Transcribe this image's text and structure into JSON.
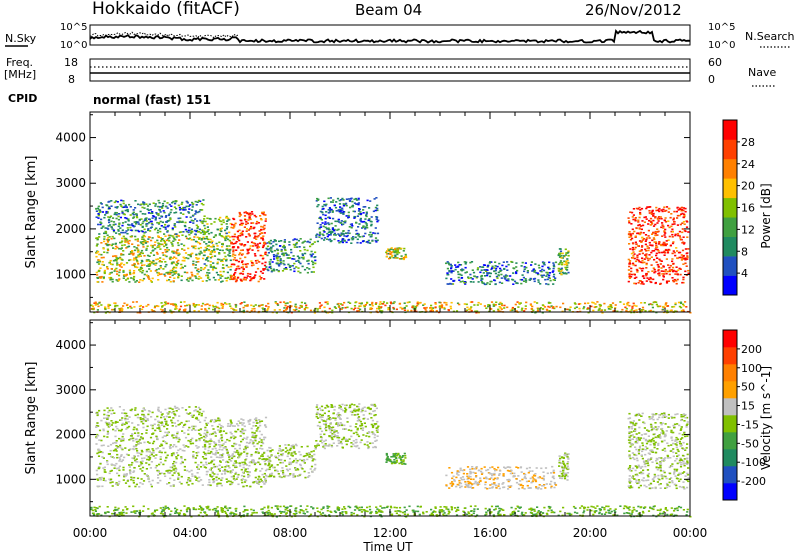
{
  "header": {
    "title": "Hokkaido (fitACF)",
    "beam": "Beam 04",
    "date": "26/Nov/2012"
  },
  "noise_panel": {
    "left_label": "N.Sky",
    "right_label": "N.Search",
    "tick_top": "10^5",
    "tick_bottom": "10^0"
  },
  "freq_panel": {
    "left_label_1": "Freq.",
    "left_label_2": "[MHz]",
    "right_label": "Nave",
    "left_tick_top": "18",
    "left_tick_bottom": "8",
    "right_tick_top": "60",
    "right_tick_bottom": "0"
  },
  "cpid": {
    "label": "CPID",
    "value": "normal (fast) 151"
  },
  "colors": {
    "power_scale": [
      "#0000ff",
      "#2050c0",
      "#208a60",
      "#40a040",
      "#80c000",
      "#ffc000",
      "#ff8000",
      "#ff4000",
      "#ff0000"
    ],
    "velocity_scale": [
      "#ff0000",
      "#ff4000",
      "#ff8000",
      "#ffa000",
      "#c0c0c0",
      "#80c000",
      "#40a040",
      "#208a60",
      "#2050c0",
      "#0000ff"
    ]
  },
  "chart_data": {
    "type": "heatmap",
    "xlabel": "Time UT",
    "x_ticks": [
      "00:00",
      "04:00",
      "08:00",
      "12:00",
      "16:00",
      "20:00",
      "00:00"
    ],
    "x_range_hours": [
      0,
      24
    ],
    "ylabel": "Slant Range [km]",
    "y_range": [
      180,
      4560
    ],
    "y_ticks": [
      1000,
      2000,
      3000,
      4000
    ],
    "panels": [
      {
        "name": "power",
        "colorbar_label": "Power [dB]",
        "colorbar_ticks": [
          4,
          8,
          12,
          16,
          20,
          24,
          28
        ],
        "colorbar_range": [
          0,
          32
        ],
        "regions": [
          {
            "t": [
              0.2,
              4.5
            ],
            "r": [
              850,
              1900
            ],
            "value": 17
          },
          {
            "t": [
              0.2,
              4.5
            ],
            "r": [
              1900,
              2650
            ],
            "value": 9
          },
          {
            "t": [
              4.5,
              5.6
            ],
            "r": [
              850,
              2300
            ],
            "value": 14
          },
          {
            "t": [
              5.6,
              7.0
            ],
            "r": [
              850,
              2400
            ],
            "value": 28
          },
          {
            "t": [
              7.0,
              9.0
            ],
            "r": [
              1050,
              1800
            ],
            "value": 10
          },
          {
            "t": [
              9.0,
              11.5
            ],
            "r": [
              1700,
              2700
            ],
            "value": 7
          },
          {
            "t": [
              11.8,
              12.6
            ],
            "r": [
              1350,
              1600
            ],
            "value": 17
          },
          {
            "t": [
              14.2,
              18.6
            ],
            "r": [
              800,
              1300
            ],
            "value": 8
          },
          {
            "t": [
              18.7,
              19.1
            ],
            "r": [
              1000,
              1600
            ],
            "value": 13
          },
          {
            "t": [
              21.5,
              23.9
            ],
            "r": [
              800,
              2500
            ],
            "value": 28
          },
          {
            "t": [
              0.0,
              24.0
            ],
            "r": [
              180,
              420
            ],
            "value": 20
          }
        ]
      },
      {
        "name": "velocity",
        "colorbar_label": "Velocity [m s^-1]",
        "colorbar_ticks": [
          200,
          100,
          50,
          15,
          -15,
          -50,
          -100,
          -200
        ],
        "colorbar_range": [
          -250,
          250
        ],
        "regions": [
          {
            "t": [
              0.2,
              4.5
            ],
            "r": [
              850,
              2650
            ],
            "value": 0
          },
          {
            "t": [
              4.5,
              7.0
            ],
            "r": [
              850,
              2400
            ],
            "value": 0
          },
          {
            "t": [
              7.0,
              9.0
            ],
            "r": [
              1050,
              1800
            ],
            "value": 0
          },
          {
            "t": [
              9.0,
              11.5
            ],
            "r": [
              1700,
              2700
            ],
            "value": 0
          },
          {
            "t": [
              11.8,
              12.6
            ],
            "r": [
              1350,
              1600
            ],
            "value": -60
          },
          {
            "t": [
              14.2,
              18.6
            ],
            "r": [
              800,
              1300
            ],
            "value": 40
          },
          {
            "t": [
              18.7,
              19.1
            ],
            "r": [
              1000,
              1600
            ],
            "value": 0
          },
          {
            "t": [
              21.5,
              23.9
            ],
            "r": [
              800,
              2500
            ],
            "value": 0
          },
          {
            "t": [
              0.0,
              24.0
            ],
            "r": [
              180,
              420
            ],
            "value": -40
          }
        ]
      }
    ]
  }
}
